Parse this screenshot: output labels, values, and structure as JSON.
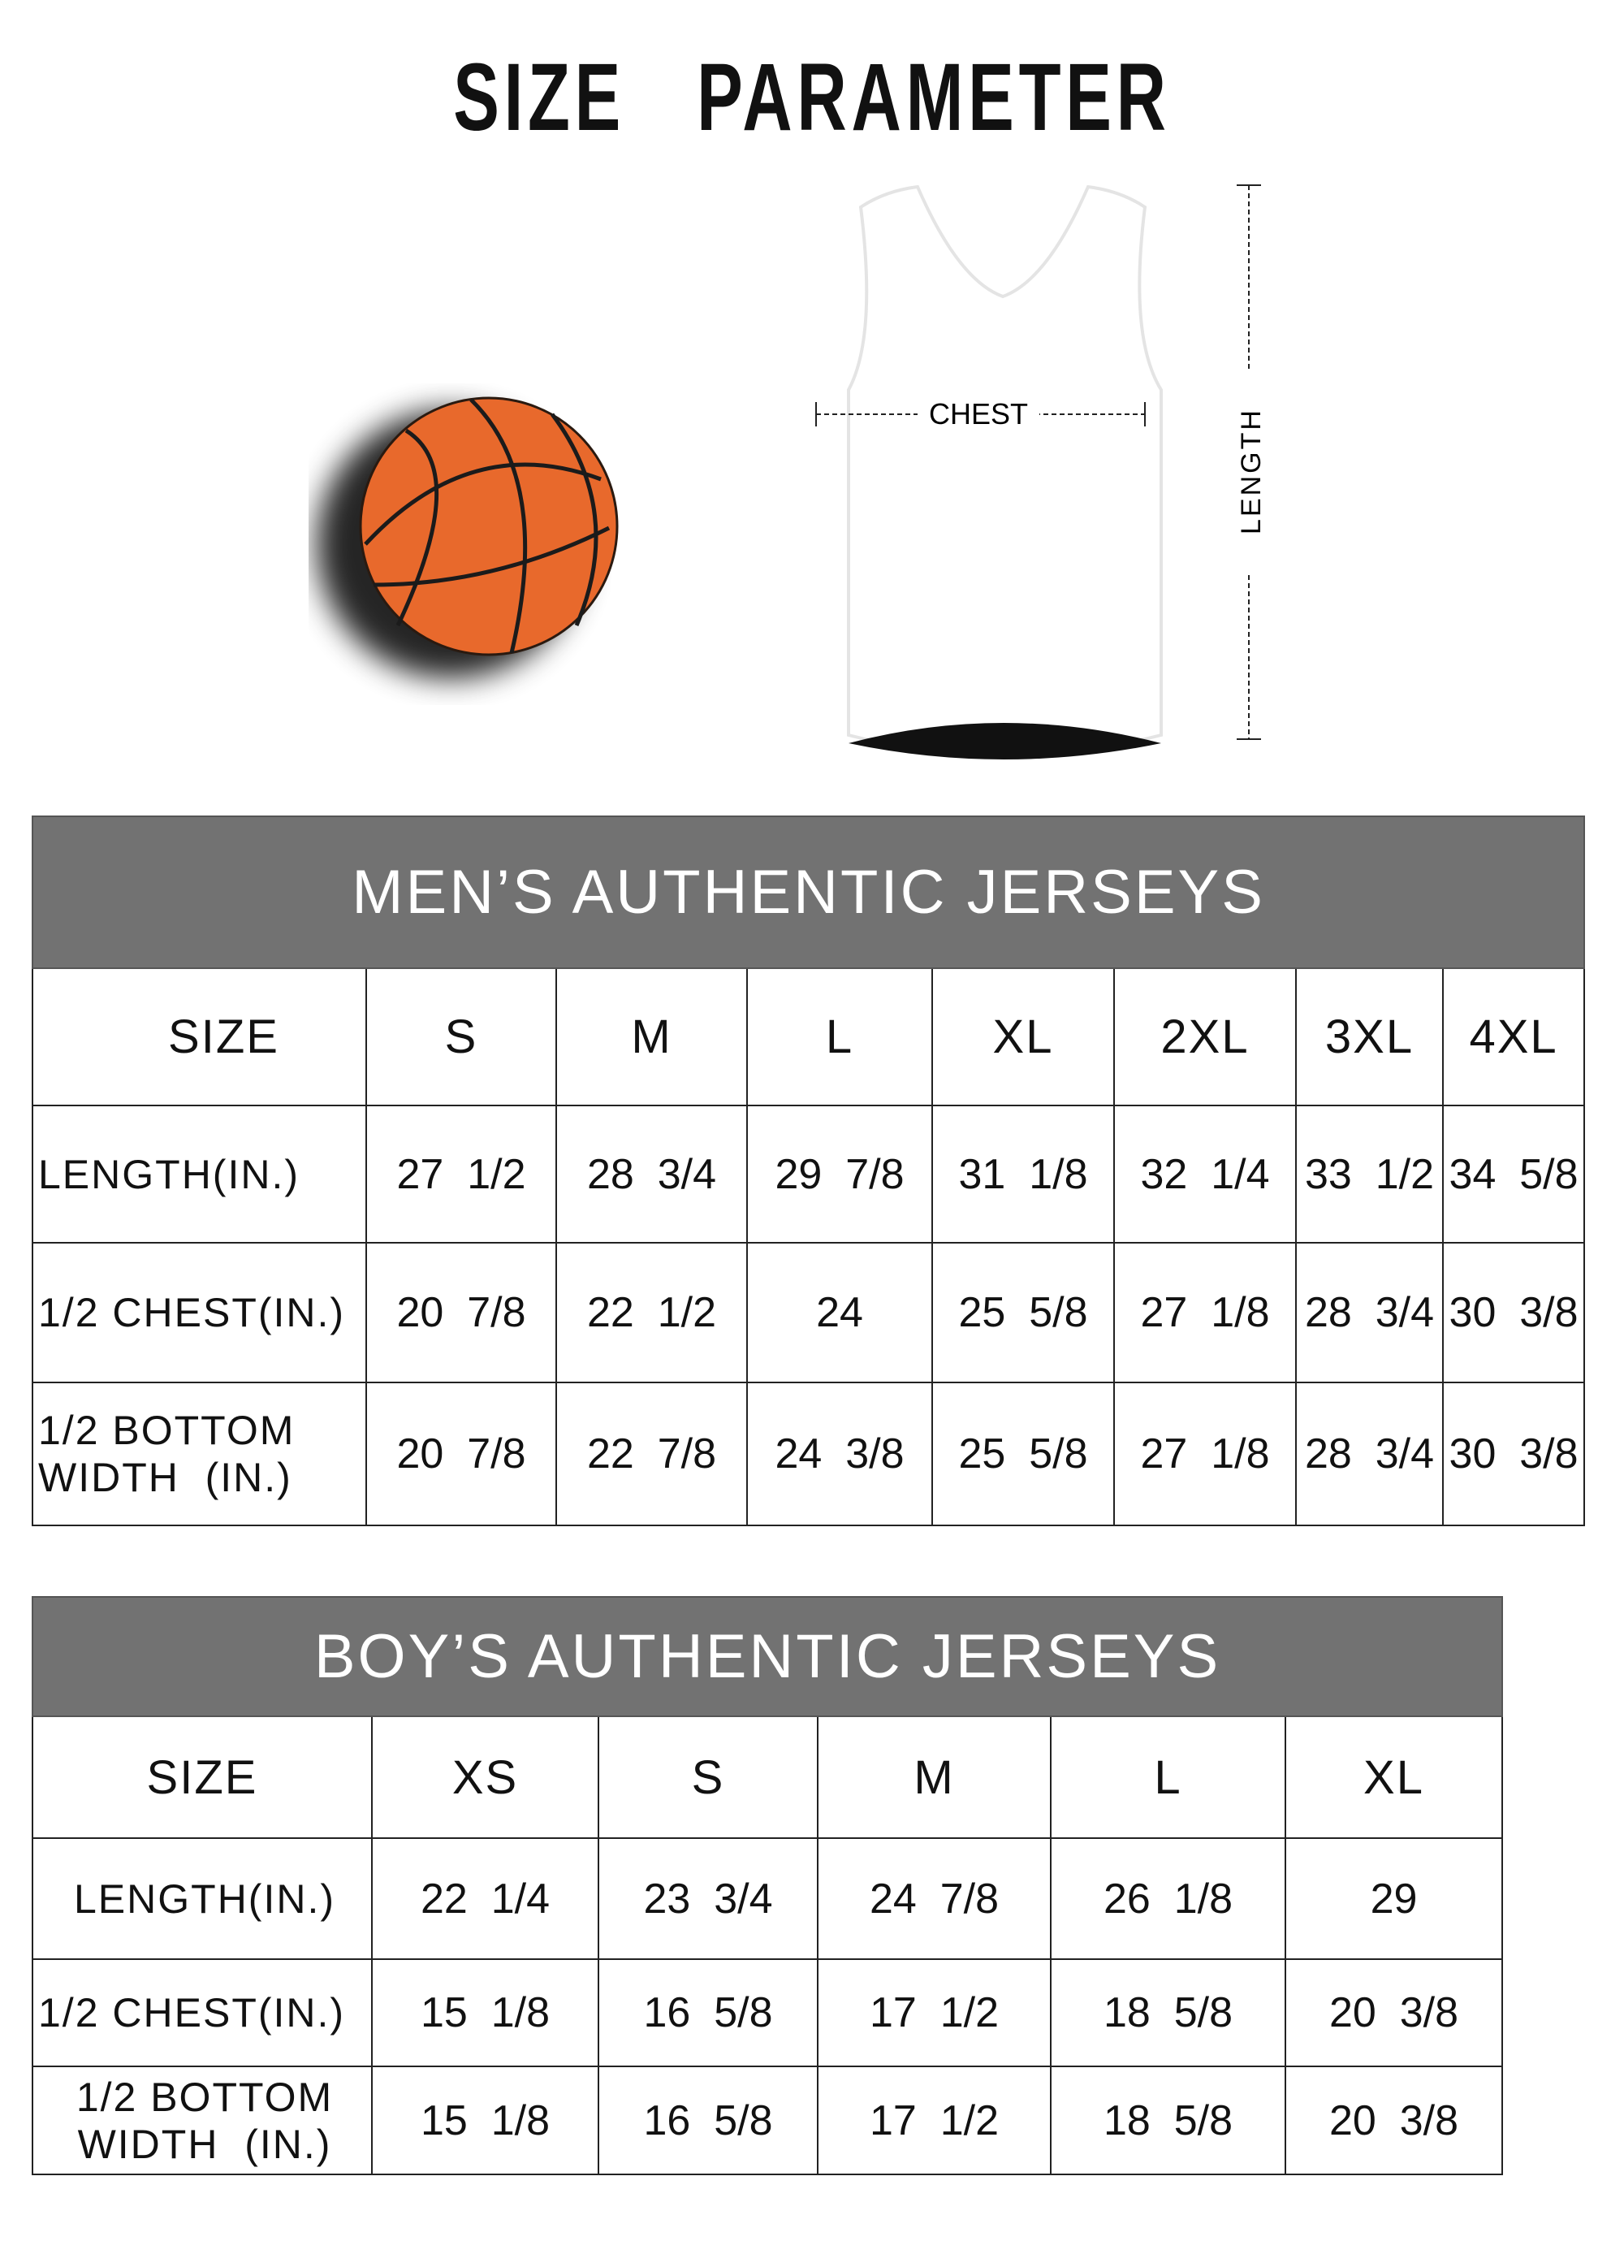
{
  "title": "SIZE   PARAMETER",
  "diagram": {
    "chest_label": "CHEST",
    "length_label": "LENGTH",
    "ball_color": "#E8692C"
  },
  "header_color": "#727272",
  "mens": {
    "title": "MEN’S AUTHENTIC JERSEYS",
    "size_label": "SIZE",
    "sizes": [
      "S",
      "M",
      "L",
      "XL",
      "2XL",
      "3XL",
      "4XL"
    ],
    "rows": [
      {
        "label": "LENGTH(IN.)",
        "values": [
          "27  1/2",
          "28  3/4",
          "29  7/8",
          "31  1/8",
          "32  1/4",
          "33  1/2",
          "34  5/8"
        ]
      },
      {
        "label": "1/2 CHEST(IN.)",
        "values": [
          "20  7/8",
          "22  1/2",
          "24",
          "25  5/8",
          "27  1/8",
          "28  3/4",
          "30  3/8"
        ]
      },
      {
        "label": "1/2 BOTTOM WIDTH  (IN.)",
        "values": [
          "20  7/8",
          "22  7/8",
          "24  3/8",
          "25  5/8",
          "27  1/8",
          "28  3/4",
          "30  3/8"
        ]
      }
    ]
  },
  "boys": {
    "title": "BOY’S AUTHENTIC JERSEYS",
    "size_label": "SIZE",
    "sizes": [
      "XS",
      "S",
      "M",
      "L",
      "XL"
    ],
    "rows": [
      {
        "label": "LENGTH(IN.)",
        "values": [
          "22  1/4",
          "23  3/4",
          "24  7/8",
          "26  1/8",
          "29"
        ]
      },
      {
        "label": "1/2 CHEST(IN.)",
        "values": [
          "15  1/8",
          "16  5/8",
          "17  1/2",
          "18  5/8",
          "20  3/8"
        ]
      },
      {
        "label": "1/2 BOTTOM WIDTH  (IN.)",
        "values": [
          "15  1/8",
          "16  5/8",
          "17  1/2",
          "18  5/8",
          "20  3/8"
        ]
      }
    ]
  }
}
